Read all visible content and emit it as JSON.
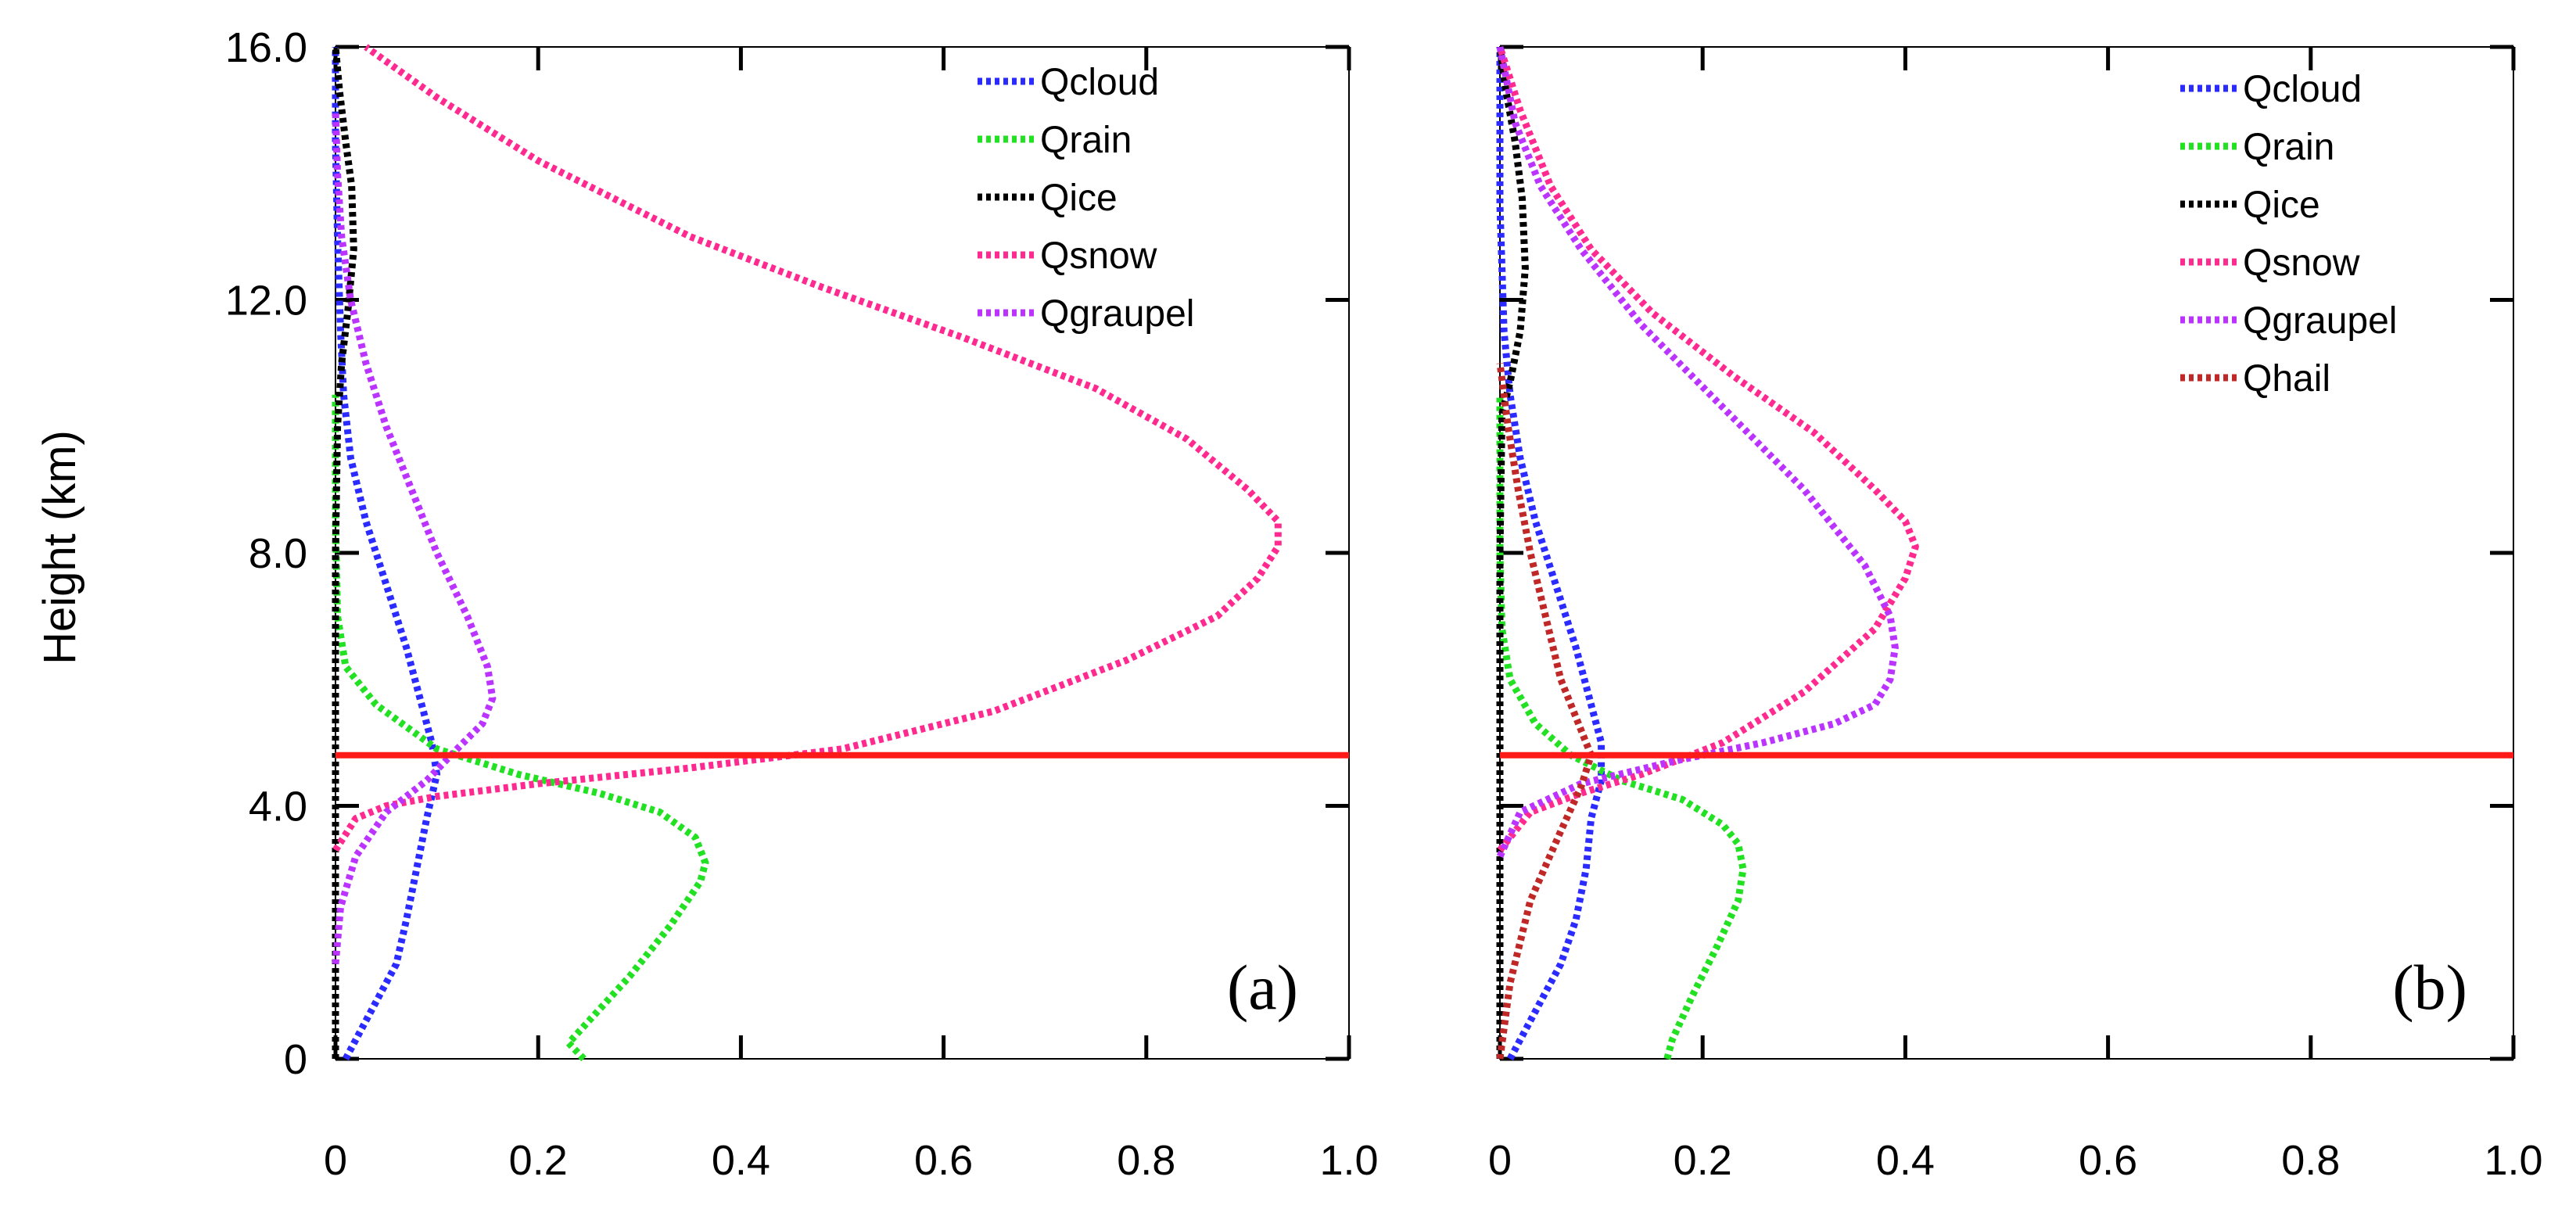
{
  "chart_data": [
    {
      "type": "line",
      "panel_label": "(a)",
      "xlabel": "",
      "ylabel": "Height (km)",
      "xlim": [
        0,
        1.0
      ],
      "ylim": [
        0,
        16.0
      ],
      "xticks": [
        0,
        0.2,
        0.4,
        0.6,
        0.8,
        1.0
      ],
      "xtick_labels": [
        "0",
        "0.2",
        "0.4",
        "0.6",
        "0.8",
        "1.0"
      ],
      "yticks": [
        0,
        4.0,
        8.0,
        12.0,
        16.0
      ],
      "ytick_labels": [
        "0",
        "4.0",
        "8.0",
        "12.0",
        "16.0"
      ],
      "legend_position": "top-right",
      "reference_line": {
        "y": 4.8,
        "color": "#ff1a1a"
      },
      "series": [
        {
          "name": "Qcloud",
          "color": "#2b2bff",
          "x": [
            0.01,
            0.02,
            0.04,
            0.06,
            0.07,
            0.08,
            0.09,
            0.1,
            0.095,
            0.085,
            0.07,
            0.05,
            0.03,
            0.015,
            0.008,
            0.005,
            0.002,
            0.0,
            0.0
          ],
          "y": [
            0,
            0.3,
            0.9,
            1.5,
            2.2,
            3.0,
            3.8,
            4.5,
            5.0,
            5.6,
            6.5,
            7.5,
            8.5,
            9.5,
            10.5,
            11.5,
            13.0,
            14.5,
            16.0
          ]
        },
        {
          "name": "Qrain",
          "color": "#22e022",
          "x": [
            0.245,
            0.23,
            0.25,
            0.29,
            0.33,
            0.36,
            0.365,
            0.355,
            0.32,
            0.26,
            0.18,
            0.1,
            0.04,
            0.01,
            0.002,
            0.0,
            0.0
          ],
          "y": [
            0,
            0.25,
            0.6,
            1.3,
            2.1,
            2.8,
            3.1,
            3.5,
            3.9,
            4.2,
            4.5,
            4.9,
            5.6,
            6.2,
            7.0,
            8.5,
            10.5
          ]
        },
        {
          "name": "Qice",
          "color": "#000000",
          "x": [
            0.0,
            0.0,
            0.0,
            0.0,
            0.0,
            0.002,
            0.006,
            0.012,
            0.018,
            0.016,
            0.01,
            0.004,
            0.0
          ],
          "y": [
            0,
            2.0,
            4.0,
            6.0,
            8.0,
            10.0,
            11.0,
            11.8,
            12.8,
            13.8,
            14.5,
            15.3,
            16.0
          ]
        },
        {
          "name": "Qsnow",
          "color": "#ff2a90",
          "x": [
            0.0,
            0.02,
            0.05,
            0.1,
            0.2,
            0.35,
            0.5,
            0.65,
            0.78,
            0.87,
            0.91,
            0.93,
            0.93,
            0.9,
            0.84,
            0.75,
            0.62,
            0.48,
            0.35,
            0.2,
            0.1,
            0.03
          ],
          "y": [
            3.3,
            3.8,
            4.0,
            4.15,
            4.35,
            4.6,
            4.9,
            5.5,
            6.3,
            7.0,
            7.6,
            8.1,
            8.5,
            9.0,
            9.8,
            10.6,
            11.4,
            12.2,
            13.0,
            14.2,
            15.2,
            16.0
          ]
        },
        {
          "name": "Qgraupel",
          "color": "#bb33ff",
          "x": [
            0.0,
            0.005,
            0.02,
            0.05,
            0.09,
            0.12,
            0.145,
            0.155,
            0.15,
            0.13,
            0.1,
            0.075,
            0.05,
            0.03,
            0.015,
            0.006,
            0.002,
            0.0
          ],
          "y": [
            1.5,
            2.4,
            3.2,
            3.9,
            4.4,
            4.9,
            5.3,
            5.7,
            6.2,
            7.0,
            8.0,
            9.0,
            10.0,
            11.0,
            12.0,
            13.0,
            14.0,
            15.0
          ]
        }
      ]
    },
    {
      "type": "line",
      "panel_label": "(b)",
      "xlabel": "",
      "ylabel": "",
      "xlim": [
        0,
        1.0
      ],
      "ylim": [
        0,
        16.0
      ],
      "xticks": [
        0,
        0.2,
        0.4,
        0.6,
        0.8,
        1.0
      ],
      "xtick_labels": [
        "0",
        "0.2",
        "0.4",
        "0.6",
        "0.8",
        "1.0"
      ],
      "yticks": [
        0,
        4.0,
        8.0,
        12.0,
        16.0
      ],
      "ytick_labels": [],
      "legend_position": "top-right",
      "reference_line": {
        "y": 4.8,
        "color": "#ff1a1a"
      },
      "series": [
        {
          "name": "Qcloud",
          "color": "#2b2bff",
          "x": [
            0.01,
            0.02,
            0.04,
            0.06,
            0.075,
            0.085,
            0.09,
            0.1,
            0.1,
            0.09,
            0.075,
            0.055,
            0.035,
            0.02,
            0.01,
            0.004,
            0.0,
            0.0
          ],
          "y": [
            0,
            0.3,
            0.9,
            1.5,
            2.2,
            3.0,
            3.8,
            4.4,
            5.0,
            5.6,
            6.5,
            7.5,
            8.5,
            9.5,
            10.5,
            11.5,
            13.5,
            16.0
          ]
        },
        {
          "name": "Qrain",
          "color": "#22e022",
          "x": [
            0.165,
            0.17,
            0.19,
            0.215,
            0.235,
            0.24,
            0.235,
            0.22,
            0.18,
            0.12,
            0.07,
            0.035,
            0.01,
            0.002,
            0.0,
            0.0
          ],
          "y": [
            0,
            0.3,
            1.0,
            1.8,
            2.5,
            3.0,
            3.4,
            3.7,
            4.1,
            4.4,
            4.8,
            5.3,
            6.0,
            6.8,
            8.0,
            10.5
          ]
        },
        {
          "name": "Qice",
          "color": "#000000",
          "x": [
            0.0,
            0.0,
            0.0,
            0.0,
            0.0,
            0.002,
            0.01,
            0.02,
            0.025,
            0.022,
            0.015,
            0.006,
            0.0
          ],
          "y": [
            0,
            2.0,
            4.0,
            6.0,
            8.0,
            10.2,
            10.7,
            11.5,
            12.5,
            13.6,
            14.5,
            15.3,
            16.0
          ]
        },
        {
          "name": "Qsnow",
          "color": "#ff2a90",
          "x": [
            0.0,
            0.03,
            0.08,
            0.14,
            0.22,
            0.3,
            0.37,
            0.4,
            0.41,
            0.4,
            0.37,
            0.31,
            0.23,
            0.15,
            0.09,
            0.05,
            0.02,
            0.0
          ],
          "y": [
            3.3,
            3.9,
            4.2,
            4.5,
            5.0,
            5.8,
            6.8,
            7.6,
            8.1,
            8.5,
            9.0,
            9.9,
            10.8,
            11.8,
            12.8,
            13.8,
            15.0,
            16.0
          ]
        },
        {
          "name": "Qgraupel",
          "color": "#bb33ff",
          "x": [
            0.0,
            0.02,
            0.08,
            0.17,
            0.26,
            0.33,
            0.37,
            0.385,
            0.39,
            0.385,
            0.36,
            0.3,
            0.22,
            0.14,
            0.08,
            0.04,
            0.015,
            0.0
          ],
          "y": [
            3.2,
            3.9,
            4.35,
            4.7,
            5.0,
            5.3,
            5.6,
            6.0,
            6.5,
            7.0,
            7.8,
            9.0,
            10.3,
            11.6,
            12.8,
            13.8,
            14.8,
            16.0
          ]
        },
        {
          "name": "Qhail",
          "color": "#c02828",
          "x": [
            0.0,
            0.01,
            0.03,
            0.06,
            0.08,
            0.09,
            0.08,
            0.06,
            0.045,
            0.03,
            0.018,
            0.008,
            0.0
          ],
          "y": [
            0,
            1.2,
            2.5,
            3.6,
            4.3,
            4.8,
            5.2,
            6.0,
            7.0,
            8.0,
            9.0,
            10.0,
            11.0
          ]
        }
      ]
    }
  ]
}
